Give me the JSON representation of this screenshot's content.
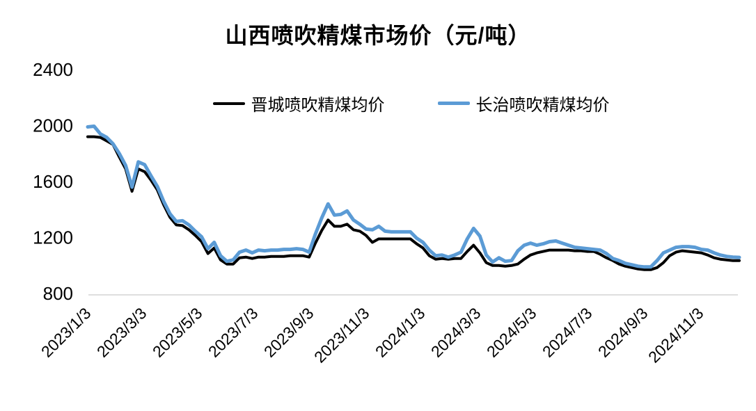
{
  "title": "山西喷吹精煤市场价（元/吨）",
  "legend": [
    {
      "label": "晋城喷吹精煤均价",
      "color": "#000000"
    },
    {
      "label": "长治喷吹精煤均价",
      "color": "#5B9BD5"
    }
  ],
  "colors": {
    "jincheng_line": "#000000",
    "changzhi_line": "#5B9BD5",
    "axis_line": "#D9D9D9",
    "text": "#000000"
  },
  "chart_data": {
    "type": "line",
    "title": "山西喷吹精煤市场价（元/吨）",
    "xlabel": "",
    "ylabel": "",
    "ylim": [
      800,
      2400
    ],
    "y_ticks": [
      800,
      1200,
      1600,
      2000,
      2400
    ],
    "grid": false,
    "legend_position": "top-center",
    "x_frequency": "weekly",
    "x_start_label": "2023/1/3",
    "x_tick_labels": [
      "2023/1/3",
      "2023/3/3",
      "2023/5/3",
      "2023/7/3",
      "2023/9/3",
      "2023/11/3",
      "2024/1/3",
      "2024/3/3",
      "2024/5/3",
      "2024/7/3",
      "2024/9/3",
      "2024/11/3"
    ],
    "series": [
      {
        "name": "晋城喷吹精煤均价",
        "color": "#000000",
        "values": [
          1920,
          1920,
          1915,
          1890,
          1865,
          1775,
          1690,
          1530,
          1690,
          1670,
          1610,
          1540,
          1435,
          1345,
          1290,
          1285,
          1255,
          1215,
          1170,
          1085,
          1125,
          1040,
          1010,
          1010,
          1055,
          1060,
          1050,
          1060,
          1060,
          1065,
          1065,
          1065,
          1070,
          1070,
          1070,
          1060,
          1160,
          1250,
          1325,
          1280,
          1280,
          1295,
          1255,
          1245,
          1215,
          1165,
          1190,
          1190,
          1190,
          1190,
          1190,
          1190,
          1155,
          1125,
          1070,
          1045,
          1050,
          1045,
          1050,
          1050,
          1100,
          1145,
          1090,
          1020,
          1000,
          1000,
          995,
          1000,
          1010,
          1045,
          1075,
          1090,
          1100,
          1110,
          1110,
          1110,
          1110,
          1105,
          1105,
          1100,
          1100,
          1080,
          1055,
          1035,
          1010,
          995,
          985,
          975,
          970,
          970,
          985,
          1020,
          1070,
          1095,
          1105,
          1100,
          1095,
          1090,
          1075,
          1055,
          1045,
          1040,
          1035,
          1035
        ]
      },
      {
        "name": "长治喷吹精煤均价",
        "color": "#5B9BD5",
        "values": [
          1990,
          1995,
          1940,
          1915,
          1870,
          1800,
          1715,
          1560,
          1740,
          1720,
          1640,
          1565,
          1460,
          1370,
          1315,
          1320,
          1290,
          1245,
          1205,
          1120,
          1165,
          1070,
          1030,
          1040,
          1095,
          1110,
          1090,
          1110,
          1105,
          1110,
          1110,
          1115,
          1115,
          1120,
          1115,
          1095,
          1225,
          1340,
          1440,
          1360,
          1365,
          1390,
          1325,
          1295,
          1260,
          1255,
          1280,
          1245,
          1240,
          1240,
          1240,
          1240,
          1195,
          1165,
          1110,
          1070,
          1075,
          1060,
          1075,
          1095,
          1190,
          1265,
          1210,
          1075,
          1025,
          1055,
          1030,
          1035,
          1105,
          1145,
          1160,
          1145,
          1155,
          1170,
          1175,
          1160,
          1145,
          1130,
          1125,
          1120,
          1115,
          1110,
          1085,
          1050,
          1035,
          1015,
          1005,
          995,
          990,
          990,
          1035,
          1090,
          1110,
          1130,
          1135,
          1135,
          1130,
          1115,
          1110,
          1090,
          1075,
          1065,
          1060,
          1058
        ]
      }
    ]
  }
}
